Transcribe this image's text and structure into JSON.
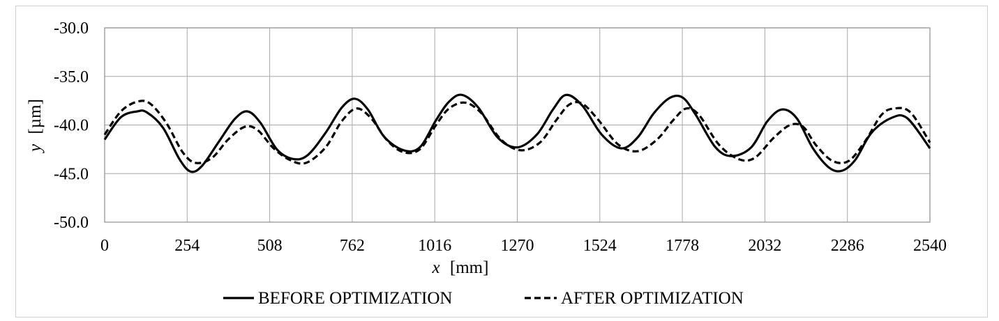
{
  "chart_data": {
    "type": "line",
    "xlabel_var": "x",
    "xlabel_unit": "[mm]",
    "ylabel_var": "y",
    "ylabel_unit": "[µm]",
    "xlim": [
      0,
      2540
    ],
    "ylim": [
      -50,
      -30
    ],
    "x_ticks": [
      "0",
      "254",
      "508",
      "762",
      "1016",
      "1270",
      "1524",
      "1778",
      "2032",
      "2286",
      "2540"
    ],
    "y_ticks": [
      "-30.0",
      "-35.0",
      "-40.0",
      "-45.0",
      "-50.0"
    ],
    "grid": true,
    "legend_position": "bottom",
    "series": [
      {
        "name": "BEFORE OPTIMIZATION",
        "style": "solid",
        "x": [
          0,
          50,
          100,
          130,
          180,
          230,
          265,
          300,
          350,
          400,
          440,
          480,
          530,
          580,
          625,
          680,
          730,
          770,
          810,
          860,
          920,
          970,
          1020,
          1060,
          1100,
          1150,
          1210,
          1270,
          1330,
          1380,
          1420,
          1470,
          1530,
          1590,
          1640,
          1690,
          1740,
          1780,
          1820,
          1880,
          1930,
          1990,
          2040,
          2085,
          2130,
          2180,
          2230,
          2270,
          2310,
          2360,
          2420,
          2470,
          2540
        ],
        "y": [
          -41.5,
          -39.2,
          -38.6,
          -38.7,
          -40.3,
          -43.5,
          -44.8,
          -44.2,
          -41.8,
          -39.4,
          -38.6,
          -39.8,
          -42.5,
          -43.5,
          -43.1,
          -40.8,
          -38.2,
          -37.3,
          -38.4,
          -41.2,
          -42.6,
          -42.3,
          -39.5,
          -37.6,
          -36.9,
          -38.2,
          -41.3,
          -42.3,
          -41.0,
          -38.4,
          -36.9,
          -38.0,
          -41.0,
          -42.4,
          -41.3,
          -38.8,
          -37.2,
          -37.2,
          -39.0,
          -42.3,
          -43.2,
          -42.3,
          -39.6,
          -38.4,
          -39.3,
          -42.4,
          -44.4,
          -44.7,
          -43.6,
          -40.8,
          -39.3,
          -39.3,
          -42.4
        ]
      },
      {
        "name": "AFTER OPTIMIZATION",
        "style": "dashed",
        "x": [
          0,
          50,
          100,
          140,
          190,
          240,
          280,
          330,
          380,
          430,
          470,
          520,
          570,
          620,
          680,
          730,
          775,
          820,
          870,
          920,
          970,
          1020,
          1060,
          1110,
          1160,
          1220,
          1280,
          1340,
          1390,
          1430,
          1470,
          1520,
          1580,
          1640,
          1700,
          1750,
          1790,
          1830,
          1890,
          1950,
          2000,
          2060,
          2110,
          2150,
          2190,
          2240,
          2290,
          2340,
          2390,
          2430,
          2480,
          2540
        ],
        "y": [
          -41.0,
          -38.6,
          -37.6,
          -37.8,
          -39.8,
          -42.8,
          -43.9,
          -43.4,
          -41.5,
          -40.2,
          -40.5,
          -42.4,
          -43.6,
          -43.9,
          -42.3,
          -39.6,
          -38.3,
          -39.3,
          -41.6,
          -42.8,
          -42.5,
          -40.0,
          -38.3,
          -37.7,
          -38.8,
          -41.5,
          -42.6,
          -41.8,
          -39.5,
          -37.9,
          -37.8,
          -39.5,
          -42.0,
          -42.7,
          -41.5,
          -39.5,
          -38.3,
          -39.0,
          -42.0,
          -43.5,
          -43.4,
          -41.3,
          -40.0,
          -40.2,
          -42.1,
          -43.7,
          -43.7,
          -41.7,
          -39.0,
          -38.3,
          -38.7,
          -41.8
        ]
      }
    ]
  }
}
